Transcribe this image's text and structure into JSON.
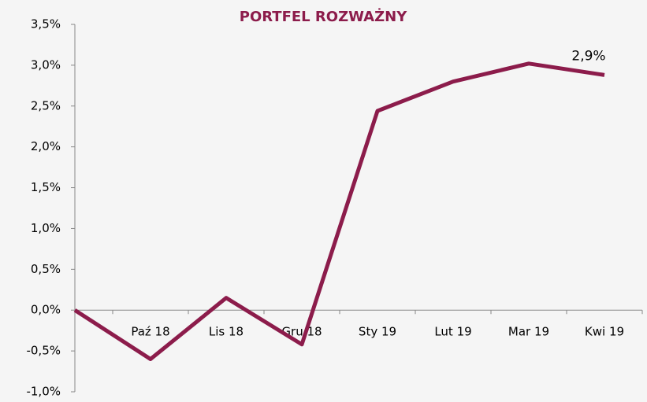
{
  "chart_data": {
    "type": "line",
    "title": "PORTFEL ROZWAŻNY",
    "categories": [
      null,
      "Paź 18",
      "Lis 18",
      "Gru 18",
      "Sty 19",
      "Lut 19",
      "Mar 19",
      "Kwi 19"
    ],
    "values": [
      0,
      -0.6,
      0.15,
      -0.42,
      2.44,
      2.8,
      3.02,
      2.88
    ],
    "value_labels": [
      null,
      null,
      null,
      null,
      null,
      null,
      null,
      "2,9%"
    ],
    "color": "#8c1c4b",
    "ylim": [
      -1,
      3.5
    ],
    "yticks": [
      {
        "value": -1,
        "label": "-1,0%"
      },
      {
        "value": -0.5,
        "label": "-0,5%"
      },
      {
        "value": 0,
        "label": "0,0%"
      },
      {
        "value": 0.5,
        "label": "0,5%"
      },
      {
        "value": 1,
        "label": "1,0%"
      },
      {
        "value": 1.5,
        "label": "1,5%"
      },
      {
        "value": 2,
        "label": "2,0%"
      },
      {
        "value": 2.5,
        "label": "2,5%"
      },
      {
        "value": 3,
        "label": "3,0%"
      },
      {
        "value": 3.5,
        "label": "3,5%"
      }
    ],
    "grid": false
  }
}
